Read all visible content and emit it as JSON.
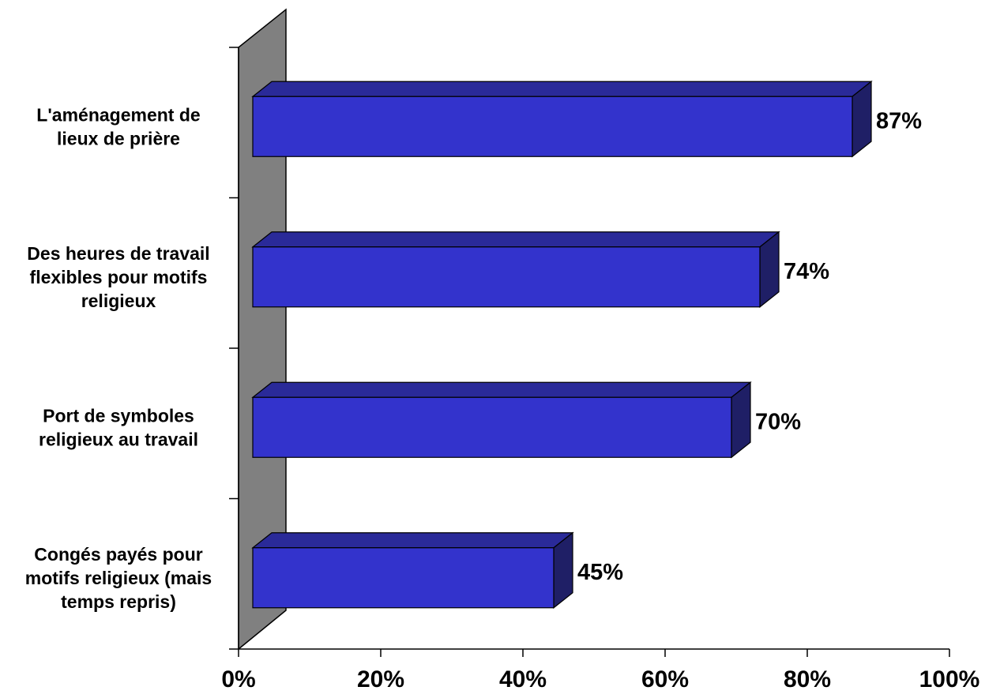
{
  "chart_data": {
    "type": "bar",
    "orientation": "horizontal",
    "style": "3d",
    "categories": [
      [
        "L'aménagement de",
        "lieux de prière"
      ],
      [
        "Des heures de travail",
        "flexibles pour motifs",
        "religieux"
      ],
      [
        "Port de symboles",
        "religieux au travail"
      ],
      [
        "Congés payés pour",
        "motifs religieux (mais",
        "temps repris)"
      ]
    ],
    "values": [
      87,
      74,
      70,
      45
    ],
    "data_labels": [
      "87%",
      "74%",
      "70%",
      "45%"
    ],
    "xlim": [
      0,
      100
    ],
    "x_ticks": [
      0,
      20,
      40,
      60,
      80,
      100
    ],
    "x_tick_labels": [
      "0%",
      "20%",
      "40%",
      "60%",
      "80%",
      "100%"
    ],
    "title": "",
    "xlabel": "",
    "ylabel": "",
    "grid": false,
    "legend": "none",
    "colors": {
      "bar_front": "#3333CC",
      "bar_top": "#2A2A99",
      "bar_side": "#1F1F66",
      "wall": "#808080"
    }
  }
}
